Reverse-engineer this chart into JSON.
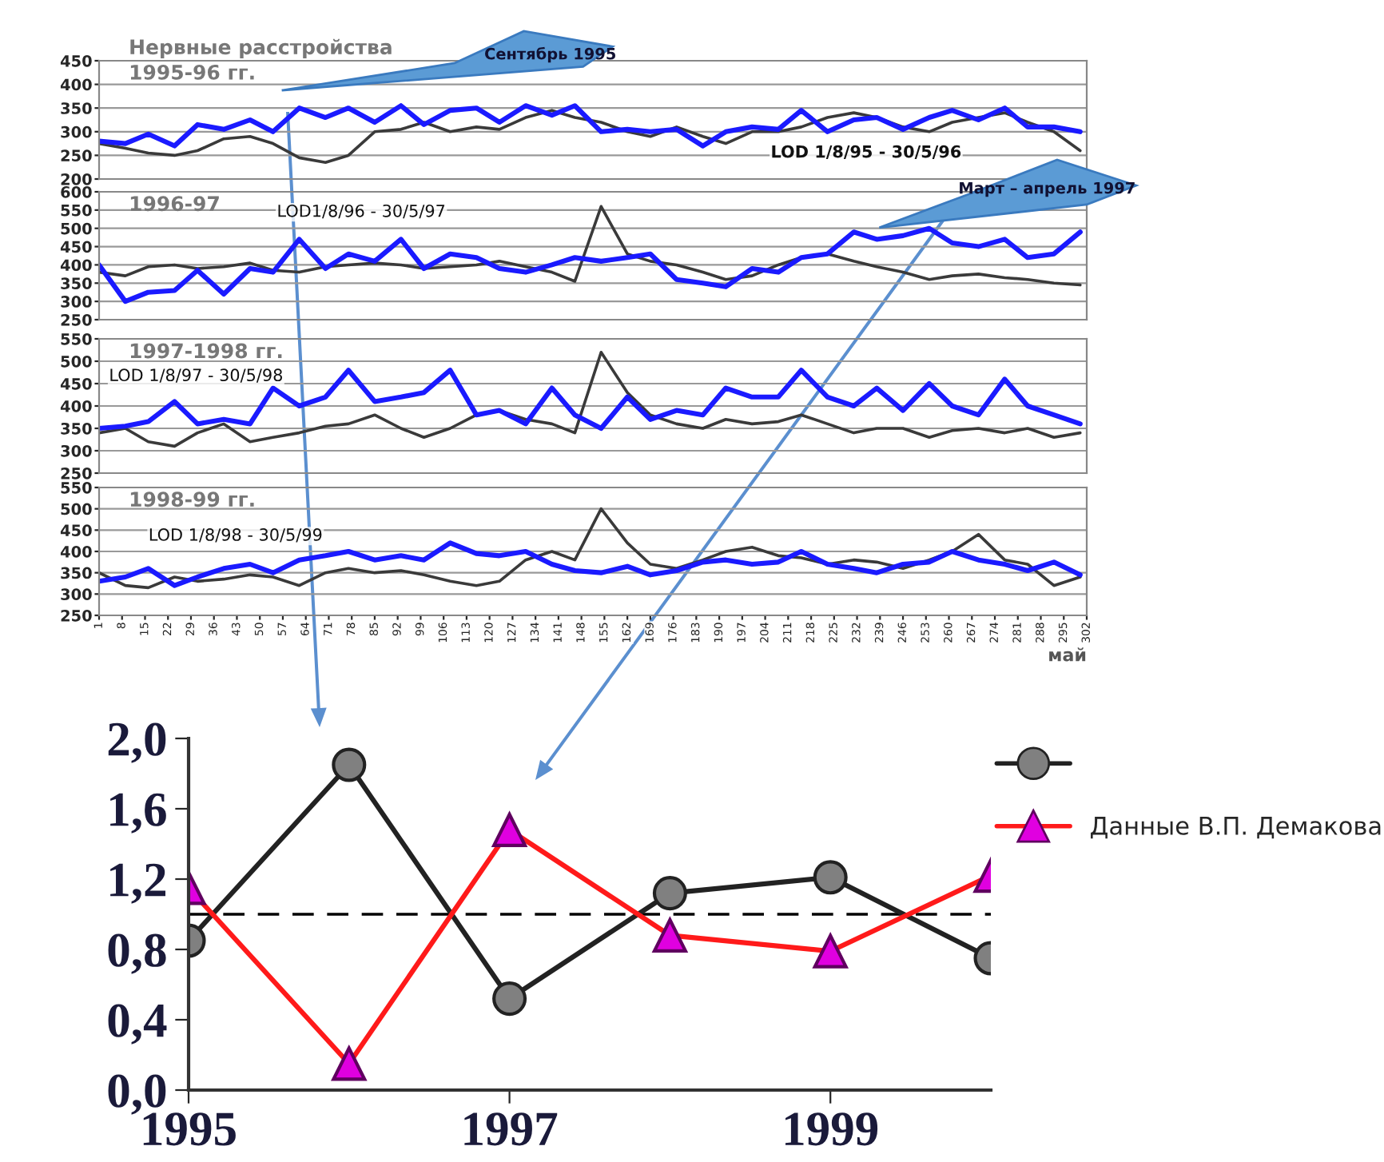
{
  "chart_data": [
    {
      "type": "line",
      "title": "Нервные расстройства",
      "subtitle": "1995-96 гг.",
      "annotations": [
        "LOD 1/8/95 - 30/5/96",
        "Сентябрь 1995"
      ],
      "x": [
        1,
        9,
        16,
        24,
        31,
        39,
        47,
        54,
        62,
        70,
        77,
        85,
        93,
        100,
        108,
        116,
        123,
        131,
        139,
        146,
        154,
        162,
        169,
        177,
        185,
        192,
        200,
        208,
        215,
        223,
        231,
        238,
        246,
        254,
        261,
        269,
        277,
        284,
        292,
        300
      ],
      "xlim": [
        1,
        302
      ],
      "ylim": [
        200,
        450
      ],
      "yticks": [
        200,
        250,
        300,
        350,
        400,
        450
      ],
      "grid": "y",
      "tick_labels": "y",
      "series": [
        {
          "color": "#3a3a3a",
          "values": [
            275,
            265,
            255,
            250,
            260,
            285,
            290,
            275,
            245,
            235,
            250,
            300,
            305,
            320,
            300,
            310,
            305,
            330,
            345,
            330,
            320,
            300,
            290,
            310,
            290,
            275,
            300,
            300,
            310,
            330,
            340,
            330,
            310,
            300,
            320,
            330,
            340,
            320,
            300,
            260
          ]
        },
        {
          "color": "#1a1aff",
          "values": [
            280,
            275,
            295,
            270,
            315,
            305,
            325,
            300,
            350,
            330,
            350,
            320,
            355,
            315,
            345,
            350,
            320,
            355,
            335,
            355,
            300,
            305,
            300,
            305,
            270,
            300,
            310,
            305,
            345,
            300,
            325,
            330,
            305,
            330,
            345,
            325,
            350,
            310,
            310,
            300
          ]
        }
      ]
    },
    {
      "type": "line",
      "title": "1996-97",
      "annotations": [
        "LOD1/8/96 - 30/5/97",
        "Март – апрель 1997"
      ],
      "x": [
        1,
        9,
        16,
        24,
        31,
        39,
        47,
        54,
        62,
        70,
        77,
        85,
        93,
        100,
        108,
        116,
        123,
        131,
        139,
        146,
        154,
        162,
        169,
        177,
        185,
        192,
        200,
        208,
        215,
        223,
        231,
        238,
        246,
        254,
        261,
        269,
        277,
        284,
        292,
        300
      ],
      "xlim": [
        1,
        302
      ],
      "ylim": [
        250,
        600
      ],
      "yticks": [
        250,
        300,
        350,
        400,
        450,
        500,
        550,
        600
      ],
      "grid": "y",
      "tick_labels": "y",
      "series": [
        {
          "color": "#3a3a3a",
          "values": [
            380,
            370,
            395,
            400,
            390,
            395,
            405,
            385,
            380,
            395,
            400,
            405,
            400,
            390,
            395,
            400,
            410,
            395,
            380,
            355,
            560,
            430,
            410,
            400,
            380,
            360,
            370,
            400,
            420,
            430,
            410,
            395,
            380,
            360,
            370,
            375,
            365,
            360,
            350,
            345
          ]
        },
        {
          "color": "#1a1aff",
          "values": [
            400,
            300,
            325,
            330,
            385,
            320,
            390,
            380,
            470,
            390,
            430,
            410,
            470,
            390,
            430,
            420,
            390,
            380,
            400,
            420,
            410,
            420,
            430,
            360,
            350,
            340,
            390,
            380,
            420,
            430,
            490,
            470,
            480,
            500,
            460,
            450,
            470,
            420,
            430,
            490
          ]
        }
      ]
    },
    {
      "type": "line",
      "title": "1997-1998 гг.",
      "annotations": [
        "LOD 1/8/97 - 30/5/98"
      ],
      "x": [
        1,
        9,
        16,
        24,
        31,
        39,
        47,
        54,
        62,
        70,
        77,
        85,
        93,
        100,
        108,
        116,
        123,
        131,
        139,
        146,
        154,
        162,
        169,
        177,
        185,
        192,
        200,
        208,
        215,
        223,
        231,
        238,
        246,
        254,
        261,
        269,
        277,
        284,
        292,
        300
      ],
      "xlim": [
        1,
        302
      ],
      "ylim": [
        250,
        550
      ],
      "yticks": [
        250,
        300,
        350,
        400,
        450,
        500,
        550
      ],
      "grid": "y",
      "tick_labels": "y",
      "series": [
        {
          "color": "#3a3a3a",
          "values": [
            340,
            350,
            320,
            310,
            340,
            360,
            320,
            330,
            340,
            355,
            360,
            380,
            350,
            330,
            350,
            380,
            390,
            370,
            360,
            340,
            520,
            430,
            380,
            360,
            350,
            370,
            360,
            365,
            380,
            360,
            340,
            350,
            350,
            330,
            345,
            350,
            340,
            350,
            330,
            340
          ]
        },
        {
          "color": "#1a1aff",
          "values": [
            350,
            355,
            365,
            410,
            360,
            370,
            360,
            440,
            400,
            420,
            480,
            410,
            420,
            430,
            480,
            380,
            390,
            360,
            440,
            380,
            350,
            420,
            370,
            390,
            380,
            440,
            420,
            420,
            480,
            420,
            400,
            440,
            390,
            450,
            400,
            380,
            460,
            400,
            380,
            360
          ]
        }
      ]
    },
    {
      "type": "line",
      "title": "1998-99 гг.",
      "xlabel": "май",
      "annotations": [
        "LOD 1/8/98 - 30/5/99"
      ],
      "x": [
        1,
        9,
        16,
        24,
        31,
        39,
        47,
        54,
        62,
        70,
        77,
        85,
        93,
        100,
        108,
        116,
        123,
        131,
        139,
        146,
        154,
        162,
        169,
        177,
        185,
        192,
        200,
        208,
        215,
        223,
        231,
        238,
        246,
        254,
        261,
        269,
        277,
        284,
        292,
        300
      ],
      "xlim": [
        1,
        302
      ],
      "xticks": [
        1,
        8,
        15,
        22,
        29,
        36,
        43,
        50,
        57,
        64,
        71,
        78,
        85,
        92,
        99,
        106,
        113,
        120,
        127,
        134,
        141,
        148,
        155,
        162,
        169,
        176,
        183,
        190,
        197,
        204,
        211,
        218,
        225,
        232,
        239,
        246,
        253,
        260,
        267,
        274,
        281,
        288,
        295,
        302
      ],
      "ylim": [
        250,
        550
      ],
      "yticks": [
        250,
        300,
        350,
        400,
        450,
        500,
        550
      ],
      "grid": "y",
      "series": [
        {
          "color": "#3a3a3a",
          "values": [
            350,
            320,
            315,
            340,
            330,
            335,
            345,
            340,
            320,
            350,
            360,
            350,
            355,
            345,
            330,
            320,
            330,
            380,
            400,
            380,
            500,
            420,
            370,
            360,
            380,
            400,
            410,
            390,
            385,
            370,
            380,
            375,
            360,
            380,
            400,
            440,
            380,
            370,
            320,
            340
          ]
        },
        {
          "color": "#1a1aff",
          "values": [
            330,
            340,
            360,
            320,
            340,
            360,
            370,
            350,
            380,
            390,
            400,
            380,
            390,
            380,
            420,
            395,
            390,
            400,
            370,
            355,
            350,
            365,
            345,
            355,
            375,
            380,
            370,
            375,
            400,
            370,
            360,
            350,
            370,
            375,
            400,
            380,
            370,
            355,
            375,
            345
          ]
        }
      ]
    },
    {
      "type": "line",
      "x": [
        1995,
        1996,
        1997,
        1998,
        1999,
        2000
      ],
      "xlim": [
        1995,
        2000
      ],
      "xticks": [
        1995,
        1997,
        1999
      ],
      "ylim": [
        0,
        2
      ],
      "yticks": [
        {
          "value": 0,
          "label": "0,0"
        },
        {
          "value": 0.4,
          "label": "0,4"
        },
        {
          "value": 0.8,
          "label": "0,8"
        },
        {
          "value": 1.2,
          "label": "1,2"
        },
        {
          "value": 1.6,
          "label": "1,6"
        },
        {
          "value": 2,
          "label": "2,0"
        }
      ],
      "grid": false,
      "legend": "right",
      "ref_lines": [
        {
          "axis": "y",
          "value": 1,
          "line_style": "dashed",
          "color": "#000000"
        }
      ],
      "series": [
        {
          "color": "#222222",
          "marker": "circle",
          "values": [
            0.85,
            1.85,
            0.52,
            1.12,
            1.21,
            0.75
          ]
        },
        {
          "name": "Данные В.П. Демакова",
          "color": "#ff1a1a",
          "marker": "triangle",
          "values": [
            1.15,
            0.15,
            1.48,
            0.88,
            0.79,
            1.22
          ]
        }
      ]
    }
  ]
}
